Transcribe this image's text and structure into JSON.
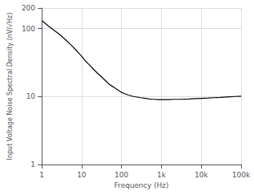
{
  "chart_data": {
    "type": "line",
    "xlabel": "Frequency (Hz)",
    "ylabel": "Input Voltage Noise Spectral Density (nV/√Hz)",
    "x": [
      1,
      1.2,
      1.5,
      2,
      2.5,
      3,
      4,
      5,
      6,
      7,
      8,
      10,
      12,
      15,
      20,
      25,
      30,
      40,
      50,
      60,
      70,
      80,
      100,
      120,
      150,
      200,
      250,
      300,
      400,
      500,
      600,
      700,
      800,
      1000,
      1500,
      2000,
      3000,
      5000,
      7000,
      10000,
      15000,
      20000,
      30000,
      50000,
      70000,
      100000
    ],
    "values": [
      130,
      120,
      108,
      95,
      86,
      79,
      68,
      60,
      54,
      49,
      45,
      39,
      34,
      30,
      25,
      22,
      20,
      17,
      15,
      14,
      13.2,
      12.5,
      11.5,
      11,
      10.5,
      10.0,
      9.8,
      9.6,
      9.4,
      9.2,
      9.1,
      9.1,
      9.0,
      9.0,
      9.0,
      9.1,
      9.1,
      9.2,
      9.3,
      9.4,
      9.5,
      9.6,
      9.7,
      9.9,
      10.0,
      10.1
    ],
    "color": "#000000",
    "xlim": [
      1,
      100000
    ],
    "ylim": [
      1,
      200
    ],
    "xticks": [
      1,
      10,
      100,
      {
        "value": 1000,
        "label": "1k"
      },
      {
        "value": 10000,
        "label": "10k"
      },
      {
        "value": 100000,
        "label": "100k"
      }
    ],
    "yticks": [
      1,
      10,
      100,
      200
    ],
    "log": true,
    "grid": true
  }
}
